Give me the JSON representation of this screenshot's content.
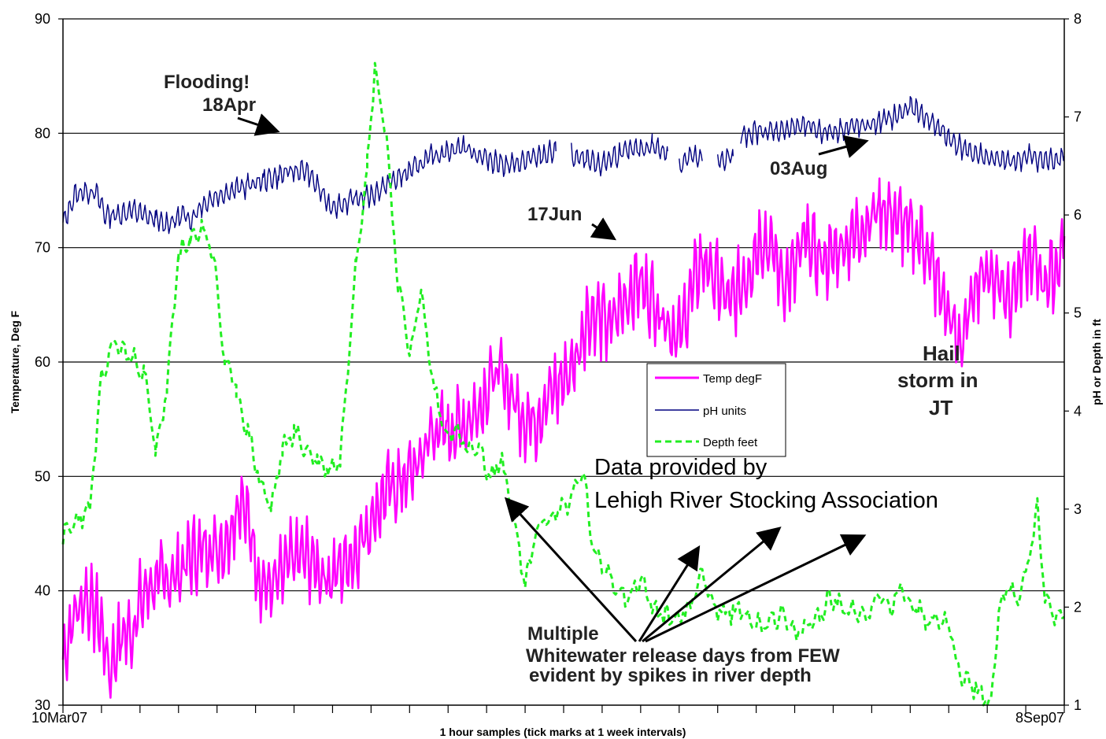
{
  "chart_data": {
    "type": "line",
    "xlabel": "1 hour samples (tick marks at 1 week intervals)",
    "ylabel_left": "Temperature, Deg F",
    "ylabel_right": "pH or Depth in ft",
    "x_start_label": "10Mar07",
    "x_end_label": "8Sep07",
    "x_range_weeks": [
      0,
      26
    ],
    "week_ticks": 26,
    "ylim_left": [
      30,
      90
    ],
    "ylim_right": [
      1,
      8
    ],
    "left_ticks": [
      "30",
      "40",
      "50",
      "60",
      "70",
      "80",
      "90"
    ],
    "right_ticks": [
      "1",
      "2",
      "3",
      "4",
      "5",
      "6",
      "7",
      "8"
    ],
    "grid": "horizontal major lines on left axis",
    "legend_placement": "center",
    "colors": {
      "temp": "#ff00ff",
      "ph": "#000080",
      "depth": "#22ee22"
    },
    "series": [
      {
        "name": "Temp degF",
        "axis": "left",
        "style": "solid",
        "points": [
          [
            0,
            34
          ],
          [
            0.3,
            38
          ],
          [
            0.6,
            39.5
          ],
          [
            1,
            37
          ],
          [
            1.2,
            33
          ],
          [
            1.5,
            36
          ],
          [
            1.8,
            36.5
          ],
          [
            2,
            39
          ],
          [
            2.3,
            40.5
          ],
          [
            2.6,
            41
          ],
          [
            3,
            41.5
          ],
          [
            3.3,
            43
          ],
          [
            3.6,
            43.5
          ],
          [
            3.9,
            44
          ],
          [
            4.2,
            44
          ],
          [
            4.6,
            48
          ],
          [
            4.9,
            45
          ],
          [
            5.1,
            41
          ],
          [
            5.4,
            40
          ],
          [
            5.7,
            41.5
          ],
          [
            6,
            43
          ],
          [
            6.3,
            43
          ],
          [
            6.6,
            42
          ],
          [
            6.9,
            41
          ],
          [
            7.2,
            42
          ],
          [
            7.6,
            43.5
          ],
          [
            7.9,
            45.5
          ],
          [
            8.2,
            47.5
          ],
          [
            8.5,
            49
          ],
          [
            8.8,
            49.5
          ],
          [
            9.2,
            51
          ],
          [
            9.6,
            54
          ],
          [
            10,
            54
          ],
          [
            10.4,
            54.5
          ],
          [
            10.8,
            56
          ],
          [
            11.1,
            58.5
          ],
          [
            11.4,
            59
          ],
          [
            11.8,
            56
          ],
          [
            12,
            55
          ],
          [
            12.3,
            55
          ],
          [
            12.6,
            57
          ],
          [
            12.9,
            58
          ],
          [
            13.3,
            60
          ],
          [
            13.6,
            64
          ],
          [
            13.9,
            64
          ],
          [
            14.2,
            63
          ],
          [
            14.5,
            65
          ],
          [
            14.9,
            67
          ],
          [
            15.2,
            66
          ],
          [
            15.6,
            64
          ],
          [
            16,
            62
          ],
          [
            16.3,
            66
          ],
          [
            16.6,
            69
          ],
          [
            17,
            67
          ],
          [
            17.3,
            65
          ],
          [
            17.5,
            66
          ],
          [
            17.8,
            68
          ],
          [
            18.1,
            71
          ],
          [
            18.4,
            70
          ],
          [
            18.7,
            67
          ],
          [
            19,
            68
          ],
          [
            19.3,
            71
          ],
          [
            19.6,
            69
          ],
          [
            19.9,
            69
          ],
          [
            20.2,
            70
          ],
          [
            20.5,
            71
          ],
          [
            20.8,
            72
          ],
          [
            21.2,
            73.5
          ],
          [
            21.5,
            73
          ],
          [
            21.8,
            72
          ],
          [
            22.1,
            71
          ],
          [
            22.3,
            71
          ],
          [
            22.7,
            67
          ],
          [
            23.2,
            62
          ],
          [
            23.4,
            62
          ],
          [
            23.7,
            67
          ],
          [
            24,
            68
          ],
          [
            24.3,
            67
          ],
          [
            24.6,
            66
          ],
          [
            24.9,
            68
          ],
          [
            25.2,
            69
          ],
          [
            25.5,
            67
          ],
          [
            25.8,
            68
          ],
          [
            26,
            71
          ]
        ]
      },
      {
        "name": "pH units",
        "axis": "right",
        "style": "solid",
        "points": [
          [
            0,
            5.9
          ],
          [
            0.3,
            6.2
          ],
          [
            0.6,
            6.25
          ],
          [
            0.9,
            6.2
          ],
          [
            1.1,
            6.0
          ],
          [
            1.4,
            6.0
          ],
          [
            1.8,
            6.05
          ],
          [
            2.1,
            6.0
          ],
          [
            2.4,
            5.95
          ],
          [
            2.6,
            5.9
          ],
          [
            2.9,
            5.95
          ],
          [
            3.1,
            6.0
          ],
          [
            3.3,
            5.95
          ],
          [
            3.6,
            6.1
          ],
          [
            4,
            6.2
          ],
          [
            4.4,
            6.25
          ],
          [
            4.8,
            6.3
          ],
          [
            5.2,
            6.35
          ],
          [
            5.6,
            6.4
          ],
          [
            6,
            6.45
          ],
          [
            6.3,
            6.45
          ],
          [
            6.6,
            6.3
          ],
          [
            6.9,
            6.1
          ],
          [
            7.2,
            6.1
          ],
          [
            7.5,
            6.15
          ],
          [
            8,
            6.2
          ],
          [
            8.4,
            6.3
          ],
          [
            8.8,
            6.4
          ],
          [
            9.2,
            6.5
          ],
          [
            9.6,
            6.6
          ],
          [
            10,
            6.65
          ],
          [
            10.4,
            6.7
          ],
          [
            10.8,
            6.6
          ],
          [
            11.2,
            6.55
          ],
          [
            11.6,
            6.5
          ],
          [
            12,
            6.55
          ],
          [
            12.4,
            6.6
          ],
          [
            12.8,
            6.65
          ],
          [
            13.2,
            6.6
          ],
          [
            13.6,
            6.55
          ],
          [
            13.9,
            6.5
          ],
          [
            14.3,
            6.6
          ],
          [
            14.7,
            6.65
          ],
          [
            15.3,
            6.7
          ],
          [
            15.7,
            6.65
          ],
          [
            16,
            6.5
          ],
          [
            16.3,
            6.6
          ],
          [
            16.6,
            6.55
          ],
          [
            17,
            6.55
          ],
          [
            17.4,
            6.6
          ],
          [
            17.6,
            6.8
          ],
          [
            18,
            6.85
          ],
          [
            18.5,
            6.85
          ],
          [
            19,
            6.9
          ],
          [
            19.4,
            6.9
          ],
          [
            19.7,
            6.85
          ],
          [
            20,
            6.85
          ],
          [
            20.4,
            6.9
          ],
          [
            20.8,
            6.9
          ],
          [
            21.2,
            6.95
          ],
          [
            21.6,
            7.0
          ],
          [
            22,
            7.1
          ],
          [
            22.4,
            7.0
          ],
          [
            22.7,
            6.9
          ],
          [
            23.1,
            6.75
          ],
          [
            23.5,
            6.65
          ],
          [
            23.9,
            6.6
          ],
          [
            24.3,
            6.55
          ],
          [
            24.7,
            6.55
          ],
          [
            25.1,
            6.6
          ],
          [
            25.5,
            6.55
          ],
          [
            26,
            6.6
          ]
        ],
        "gaps_after_week": [
          13.1,
          15.7,
          16.6,
          17.4
        ]
      },
      {
        "name": "Depth feet",
        "axis": "right",
        "style": "dashed",
        "points": [
          [
            0,
            2.7
          ],
          [
            0.4,
            2.9
          ],
          [
            0.7,
            3.0
          ],
          [
            1,
            4.3
          ],
          [
            1.3,
            4.7
          ],
          [
            1.6,
            4.6
          ],
          [
            1.9,
            4.5
          ],
          [
            2.1,
            4.4
          ],
          [
            2.4,
            3.6
          ],
          [
            2.7,
            4.2
          ],
          [
            3,
            5.6
          ],
          [
            3.3,
            5.7
          ],
          [
            3.6,
            5.9
          ],
          [
            3.9,
            5.6
          ],
          [
            4.2,
            4.5
          ],
          [
            4.5,
            4.2
          ],
          [
            4.8,
            3.8
          ],
          [
            5.1,
            3.3
          ],
          [
            5.4,
            3.0
          ],
          [
            5.7,
            3.6
          ],
          [
            6,
            3.8
          ],
          [
            6.3,
            3.6
          ],
          [
            6.6,
            3.5
          ],
          [
            6.9,
            3.4
          ],
          [
            7.2,
            3.5
          ],
          [
            7.6,
            5.5
          ],
          [
            7.9,
            6.5
          ],
          [
            8.1,
            7.5
          ],
          [
            8.4,
            6.8
          ],
          [
            8.7,
            5.3
          ],
          [
            9,
            4.6
          ],
          [
            9.3,
            5.2
          ],
          [
            9.6,
            4.3
          ],
          [
            9.9,
            3.8
          ],
          [
            10.2,
            3.8
          ],
          [
            10.5,
            3.6
          ],
          [
            10.8,
            3.6
          ],
          [
            11.1,
            3.3
          ],
          [
            11.4,
            3.5
          ],
          [
            11.7,
            2.9
          ],
          [
            12,
            2.2
          ],
          [
            12.3,
            2.8
          ],
          [
            12.6,
            2.9
          ],
          [
            12.9,
            3.0
          ],
          [
            13.2,
            3.1
          ],
          [
            13.5,
            3.4
          ],
          [
            13.8,
            2.5
          ],
          [
            14.1,
            2.4
          ],
          [
            14.4,
            2.2
          ],
          [
            14.7,
            2.1
          ],
          [
            15,
            2.3
          ],
          [
            15.3,
            2.0
          ],
          [
            15.6,
            1.9
          ],
          [
            16,
            1.9
          ],
          [
            16.3,
            2.0
          ],
          [
            16.6,
            2.4
          ],
          [
            16.9,
            2.0
          ],
          [
            17.2,
            1.9
          ],
          [
            17.5,
            2.0
          ],
          [
            17.8,
            1.9
          ],
          [
            18.1,
            1.8
          ],
          [
            18.4,
            1.9
          ],
          [
            18.7,
            1.9
          ],
          [
            19,
            1.7
          ],
          [
            19.3,
            1.8
          ],
          [
            19.6,
            1.9
          ],
          [
            19.9,
            2.1
          ],
          [
            20.2,
            2.0
          ],
          [
            20.5,
            2.0
          ],
          [
            20.8,
            1.9
          ],
          [
            21.1,
            2.1
          ],
          [
            21.5,
            2.0
          ],
          [
            21.8,
            2.2
          ],
          [
            22.1,
            2.0
          ],
          [
            22.4,
            1.9
          ],
          [
            22.7,
            1.9
          ],
          [
            23,
            1.8
          ],
          [
            23.3,
            1.3
          ],
          [
            23.6,
            1.2
          ],
          [
            23.9,
            1.1
          ],
          [
            24.1,
            1.0
          ],
          [
            24.3,
            2.0
          ],
          [
            24.5,
            2.2
          ],
          [
            24.8,
            2.1
          ],
          [
            25.1,
            2.5
          ],
          [
            25.3,
            3.0
          ],
          [
            25.5,
            2.1
          ],
          [
            25.8,
            1.9
          ],
          [
            26,
            1.9
          ]
        ]
      }
    ],
    "legend": [
      "Temp degF",
      "pH units",
      "Depth feet"
    ],
    "annotations": {
      "flooding_line1": "Flooding!",
      "flooding_line2": "18Apr",
      "jun": "17Jun",
      "aug": "03Aug",
      "hail_line1": "Hail",
      "hail_line2": "storm in",
      "hail_line3": "JT",
      "credit_line1": "Data provided by",
      "credit_line2": "Lehigh River Stocking Association",
      "ww_line1": "Multiple",
      "ww_line2": "Whitewater release days from FEW",
      "ww_line3": "evident by spikes in river depth"
    }
  }
}
